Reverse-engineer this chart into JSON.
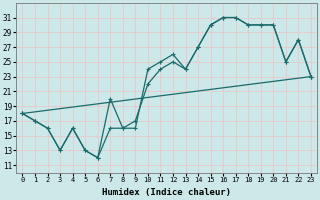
{
  "xlabel": "Humidex (Indice chaleur)",
  "background_color": "#cce8e8",
  "grid_color": "#e8c8c8",
  "line_color": "#1a6b6b",
  "xlim": [
    -0.5,
    23.5
  ],
  "ylim": [
    10,
    33
  ],
  "yticks": [
    11,
    13,
    15,
    17,
    19,
    21,
    23,
    25,
    27,
    29,
    31
  ],
  "xticks": [
    0,
    1,
    2,
    3,
    4,
    5,
    6,
    7,
    8,
    9,
    10,
    11,
    12,
    13,
    14,
    15,
    16,
    17,
    18,
    19,
    20,
    21,
    22,
    23
  ],
  "line_jagged": {
    "x": [
      0,
      1,
      2,
      3,
      4,
      5,
      6,
      7,
      8,
      9,
      10,
      11,
      12,
      13,
      14,
      15,
      16,
      17,
      18,
      19,
      20,
      21,
      22,
      23
    ],
    "y": [
      18,
      17,
      16,
      13,
      16,
      13,
      12,
      20,
      16,
      16,
      24,
      25,
      26,
      24,
      27,
      30,
      31,
      31,
      30,
      30,
      30,
      25,
      28,
      23
    ]
  },
  "line_upper": {
    "x": [
      0,
      1,
      2,
      3,
      4,
      5,
      6,
      7,
      8,
      9,
      10,
      11,
      12,
      13,
      14,
      15,
      16,
      17,
      18,
      19,
      20,
      21,
      22,
      23
    ],
    "y": [
      18,
      17,
      16,
      13,
      16,
      13,
      12,
      16,
      16,
      17,
      22,
      24,
      25,
      24,
      27,
      30,
      31,
      31,
      30,
      30,
      30,
      25,
      28,
      23
    ]
  },
  "line_straight": {
    "x": [
      0,
      23
    ],
    "y": [
      18,
      23
    ]
  }
}
